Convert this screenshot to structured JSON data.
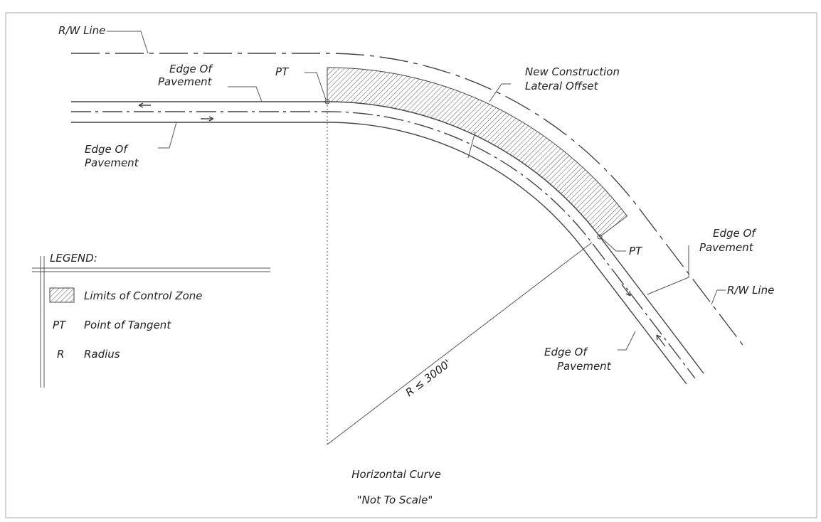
{
  "labels": {
    "rw_top": "R/W Line",
    "rw_right": "R/W Line",
    "edge_top": [
      "Edge Of",
      "Pavement"
    ],
    "edge_left": [
      "Edge Of",
      "Pavement"
    ],
    "edge_right": [
      "Edge Of",
      "Pavement"
    ],
    "edge_bottom": [
      "Edge Of",
      "Pavement"
    ],
    "pt_left": "PT",
    "pt_right": "PT",
    "offset": [
      "New Construction",
      "Lateral Offset"
    ],
    "radius": "R ≤ 3000'"
  },
  "legend": {
    "title": "LEGEND:",
    "items": [
      {
        "label": "Limits of Control Zone"
      },
      {
        "key": "PT",
        "label": "Point of Tangent"
      },
      {
        "key": "R",
        "label": "Radius"
      }
    ]
  },
  "caption": {
    "title": "Horizontal Curve",
    "subtitle": "\"Not To Scale\""
  }
}
